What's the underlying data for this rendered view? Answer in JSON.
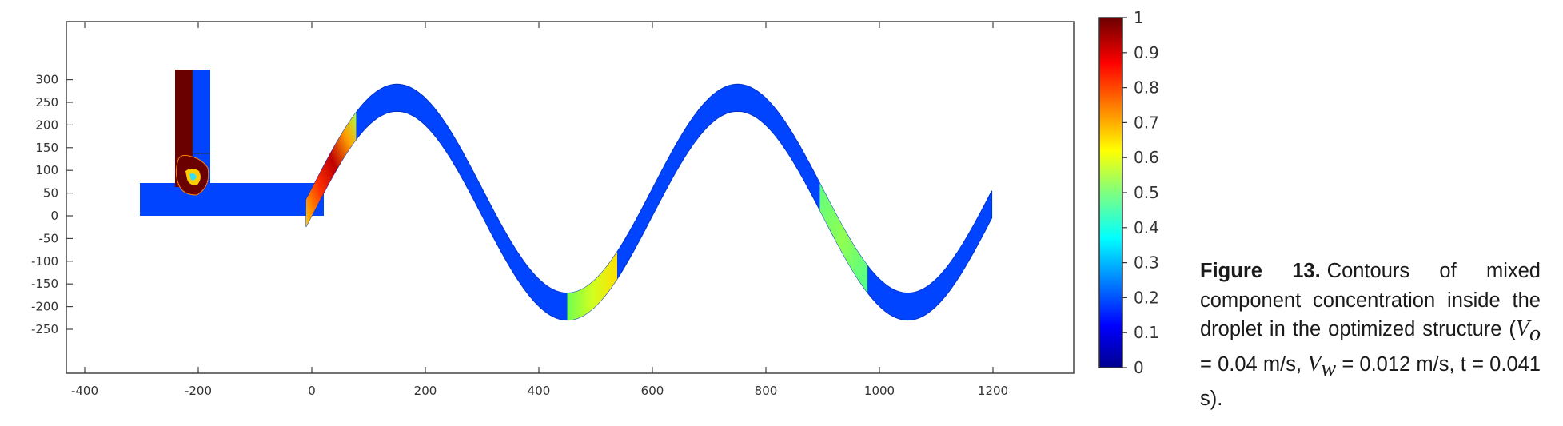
{
  "chart_data": {
    "type": "heatmap",
    "title": "",
    "xlabel": "",
    "ylabel": "",
    "xlim": [
      -430,
      1330
    ],
    "ylim": [
      -280,
      335
    ],
    "x_ticks": [
      -400,
      -200,
      0,
      200,
      400,
      600,
      800,
      1000,
      1200
    ],
    "y_ticks": [
      300,
      250,
      200,
      150,
      100,
      50,
      0,
      -50,
      -100,
      -150,
      -200,
      -250
    ],
    "colorbar": {
      "min": 0,
      "max": 1,
      "ticks": [
        1,
        0.9,
        0.8,
        0.7,
        0.6,
        0.5,
        0.4,
        0.3,
        0.2,
        0.1,
        0
      ],
      "colormap": "jet"
    },
    "geometry": {
      "inlet_channel": {
        "x": [
          -300,
          -30
        ],
        "y": [
          0,
          60
        ]
      },
      "vertical_inlet": {
        "x": [
          -240,
          -180
        ],
        "y": [
          60,
          260
        ]
      },
      "serpentine": {
        "x_start": 0,
        "x_end": 1200,
        "amplitude": 230,
        "period": 600,
        "width": 60
      }
    },
    "droplets": [
      {
        "x_range": [
          -10,
          80
        ],
        "concentration": 0.75
      },
      {
        "x_range": [
          450,
          540
        ],
        "concentration": 0.6
      },
      {
        "x_range": [
          895,
          980
        ],
        "concentration": 0.5
      }
    ],
    "colors": {
      "background": "#0044ff",
      "max": "#6b0000",
      "mid": "#7fff7f"
    }
  },
  "caption": {
    "label": "Figure 13.",
    "text": "Contours of mixed component concentration inside the droplet in the optimized structure (",
    "vo_symbol": "V",
    "vo_sub": "o",
    "vo_value": " = 0.04 m/s,",
    "vw_symbol": "V",
    "vw_sub": "w",
    "vw_value": " = 0.012 m/s, t = 0.041 s)."
  }
}
